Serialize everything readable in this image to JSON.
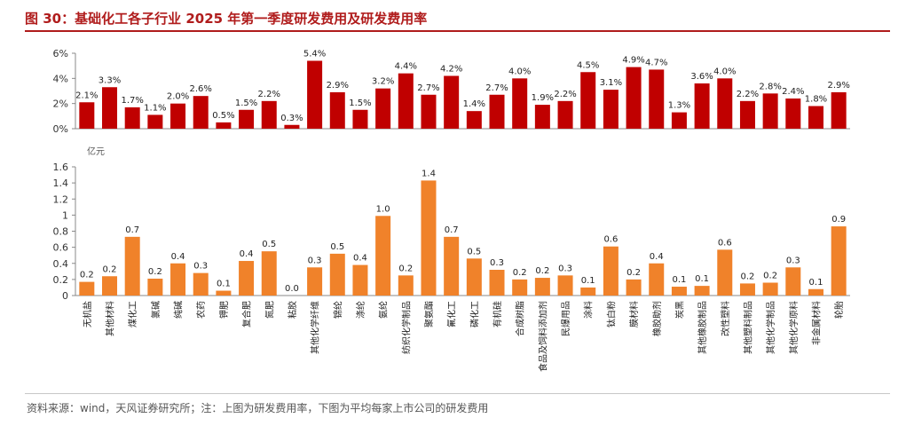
{
  "figure": {
    "title": "图 30：基础化工各子行业 2025 年第一季度研发费用及研发费用率",
    "source": "资料来源：wind，天风证券研究所；注：上图为研发费用率，下图为平均每家上市公司的研发费用"
  },
  "chart_data": [
    {
      "type": "bar",
      "name": "研发费用率",
      "categories": [
        "无机盐",
        "其他材料",
        "煤化工",
        "氯碱",
        "纯碱",
        "农药",
        "钾肥",
        "复合肥",
        "氮肥",
        "粘胶",
        "其他化学纤维",
        "锦纶",
        "涤纶",
        "氨纶",
        "纺织化学制品",
        "聚氨酯",
        "氟化工",
        "磷化工",
        "有机硅",
        "合成树脂",
        "食品及饲料添加剂",
        "民爆用品",
        "涂料",
        "钛白粉",
        "膜材料",
        "橡胶助剂",
        "炭黑",
        "其他橡胶制品",
        "改性塑料",
        "其他塑料制品",
        "其他化学制品",
        "其他化学原料",
        "非金属材料",
        "轮胎"
      ],
      "values": [
        2.1,
        3.3,
        1.7,
        1.1,
        2.0,
        2.6,
        0.5,
        1.5,
        2.2,
        0.3,
        5.4,
        2.9,
        1.5,
        3.2,
        4.4,
        2.7,
        4.2,
        1.4,
        2.7,
        4.0,
        1.9,
        2.2,
        4.5,
        3.1,
        4.9,
        4.7,
        1.3,
        3.6,
        4.0,
        2.2,
        2.8,
        2.4,
        1.8,
        2.9
      ],
      "value_labels": [
        "2.1%",
        "3.3%",
        "1.7%",
        "1.1%",
        "2.0%",
        "2.6%",
        "0.5%",
        "1.5%",
        "2.2%",
        "0.3%",
        "5.4%",
        "2.9%",
        "1.5%",
        "3.2%",
        "4.4%",
        "2.7%",
        "4.2%",
        "1.4%",
        "2.7%",
        "4.0%",
        "1.9%",
        "2.2%",
        "4.5%",
        "3.1%",
        "4.9%",
        "4.7%",
        "1.3%",
        "3.6%",
        "4.0%",
        "2.2%",
        "2.8%",
        "2.4%",
        "1.8%",
        "2.9%"
      ],
      "ylim": [
        0,
        6
      ],
      "yticks": [
        "0%",
        "2%",
        "4%",
        "6%"
      ],
      "color": "#c00000",
      "grid": false
    },
    {
      "type": "bar",
      "name": "平均每家上市公司研发费用",
      "unit_label": "亿元",
      "values": [
        0.17,
        0.24,
        0.73,
        0.21,
        0.4,
        0.28,
        0.06,
        0.43,
        0.55,
        0.0,
        0.35,
        0.52,
        0.38,
        0.99,
        0.25,
        1.43,
        0.73,
        0.46,
        0.32,
        0.2,
        0.22,
        0.25,
        0.1,
        0.61,
        0.2,
        0.4,
        0.11,
        0.12,
        0.57,
        0.15,
        0.16,
        0.35,
        0.08,
        0.86
      ],
      "value_labels": [
        "0.2",
        "0.2",
        "0.7",
        "0.2",
        "0.4",
        "0.3",
        "0.1",
        "0.4",
        "0.5",
        "0.0",
        "0.3",
        "0.5",
        "0.4",
        "1.0",
        "0.2",
        "1.4",
        "0.7",
        "0.5",
        "0.3",
        "0.2",
        "0.2",
        "0.3",
        "0.1",
        "0.6",
        "0.2",
        "0.4",
        "0.1",
        "0.1",
        "0.6",
        "0.2",
        "0.2",
        "0.3",
        "0.1",
        "0.9"
      ],
      "ylim": [
        0,
        1.6
      ],
      "yticks": [
        "0",
        "0.2",
        "0.4",
        "0.6",
        "0.8",
        "1",
        "1.2",
        "1.4",
        "1.6"
      ],
      "color": "#f0822a",
      "grid": false
    }
  ]
}
